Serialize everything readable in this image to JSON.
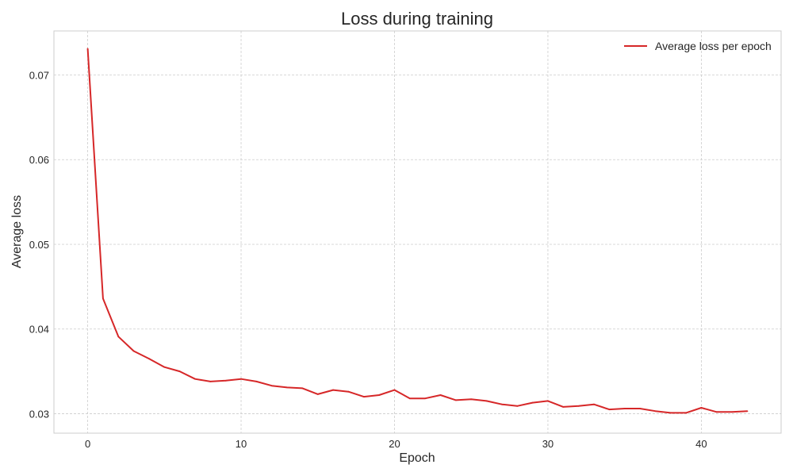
{
  "chart_data": {
    "type": "line",
    "title": "Loss during training",
    "xlabel": "Epoch",
    "ylabel": "Average loss",
    "xlim": [
      -2.2,
      45.2
    ],
    "ylim": [
      0.0277,
      0.0752
    ],
    "xticks": [
      0,
      10,
      20,
      30,
      40
    ],
    "yticks": [
      0.03,
      0.04,
      0.05,
      0.06,
      0.07
    ],
    "ytick_labels": [
      "0.03",
      "0.04",
      "0.05",
      "0.06",
      "0.07"
    ],
    "grid": true,
    "legend_position": "top-right",
    "series": [
      {
        "name": "Average loss per epoch",
        "color": "#d62728",
        "x": [
          0,
          1,
          2,
          3,
          4,
          5,
          6,
          7,
          8,
          9,
          10,
          11,
          12,
          13,
          14,
          15,
          16,
          17,
          18,
          19,
          20,
          21,
          22,
          23,
          24,
          25,
          26,
          27,
          28,
          29,
          30,
          31,
          32,
          33,
          34,
          35,
          36,
          37,
          38,
          39,
          40,
          41,
          42,
          43
        ],
        "values": [
          0.0731,
          0.0436,
          0.0391,
          0.0374,
          0.0365,
          0.0355,
          0.035,
          0.0341,
          0.0338,
          0.0339,
          0.0341,
          0.0338,
          0.0333,
          0.0331,
          0.033,
          0.0323,
          0.0328,
          0.0326,
          0.032,
          0.0322,
          0.0328,
          0.0318,
          0.0318,
          0.0322,
          0.0316,
          0.0317,
          0.0315,
          0.0311,
          0.0309,
          0.0313,
          0.0315,
          0.0308,
          0.0309,
          0.0311,
          0.0305,
          0.0306,
          0.0306,
          0.0303,
          0.0301,
          0.0301,
          0.0307,
          0.0302,
          0.0302,
          0.0303
        ]
      }
    ]
  }
}
